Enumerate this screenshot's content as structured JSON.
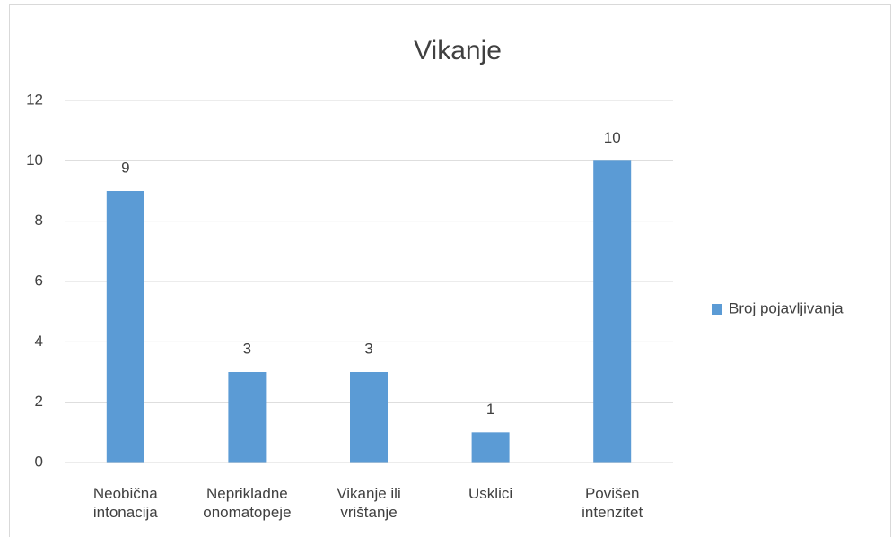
{
  "chart_data": {
    "type": "bar",
    "title": "Vikanje",
    "categories": [
      "Neobična intonacija",
      "Neprikladne onomatopeje",
      "Vikanje ili vrištanje",
      "Usklici",
      "Povišen intenzitet"
    ],
    "series": [
      {
        "name": "Broj pojavljivanja",
        "color": "#5b9bd5",
        "values": [
          9,
          3,
          3,
          1,
          10
        ]
      }
    ],
    "ylim": [
      0,
      12
    ],
    "yticks": [
      0,
      2,
      4,
      6,
      8,
      10,
      12
    ],
    "grid": true,
    "legend": "right"
  }
}
